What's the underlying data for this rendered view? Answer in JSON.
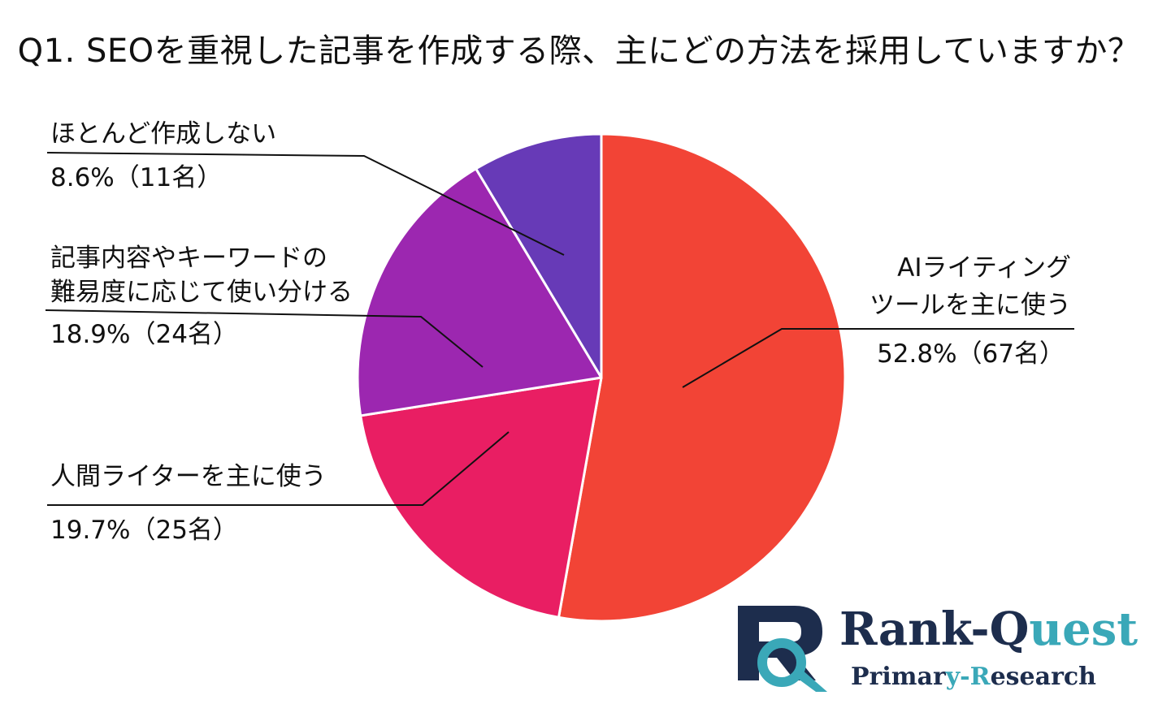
{
  "title": "Q1. SEOを重視した記事を作成する際、主にどの方法を採用していますか？",
  "chart_data": {
    "type": "pie",
    "title": "Q1. SEOを重視した記事を作成する際、主にどの方法を採用していますか？",
    "slices": [
      {
        "label": [
          "AIライティング",
          "ツールを主に使う"
        ],
        "value": 52.8,
        "count_label": "52.8%（67名）",
        "color": "#f24436"
      },
      {
        "label": [
          "人間ライターを主に使う"
        ],
        "value": 19.7,
        "count_label": "19.7%（25名）",
        "color": "#e91e63"
      },
      {
        "label": [
          "記事内容やキーワードの",
          "難易度に応じて使い分ける"
        ],
        "value": 18.9,
        "count_label": "18.9%（24名）",
        "color": "#9c27b0"
      },
      {
        "label": [
          "ほとんど作成しない"
        ],
        "value": 8.6,
        "count_label": "8.6%（11名）",
        "color": "#673ab7"
      }
    ],
    "start_angle_deg": 0,
    "direction": "clockwise"
  },
  "logo": {
    "name_part1": "Rank-Q",
    "name_part2": "uest",
    "sub_part1": "Primar",
    "sub_part2": "y-R",
    "sub_part3": "esearch",
    "primary_color": "#1d2d4d",
    "accent_color": "#3aa8b8"
  }
}
